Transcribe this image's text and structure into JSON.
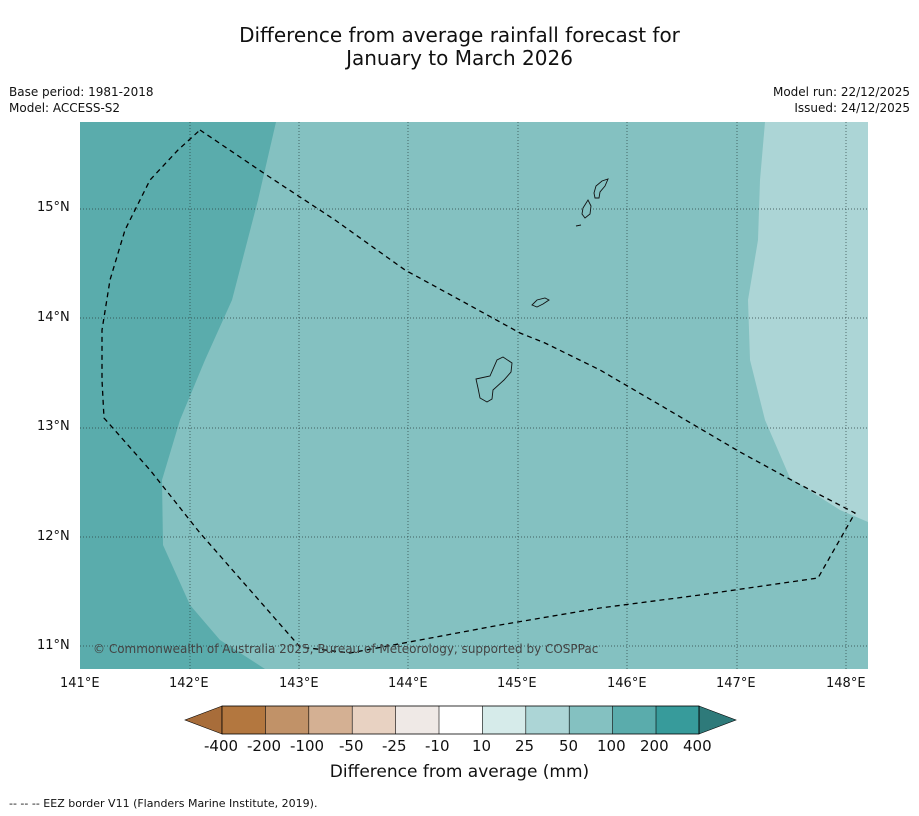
{
  "title_line1": "Difference from average rainfall forecast for",
  "title_line2": "January to March 2026",
  "meta_left": {
    "base_period": "Base period: 1981-2018",
    "model": "Model: ACCESS-S2"
  },
  "meta_right": {
    "model_run": "Model run: 22/12/2025",
    "issued": "Issued: 24/12/2025"
  },
  "latitudes": [
    "15°N",
    "14°N",
    "13°N",
    "12°N",
    "11°N"
  ],
  "longitudes": [
    "141°E",
    "142°E",
    "143°E",
    "144°E",
    "145°E",
    "146°E",
    "147°E",
    "148°E"
  ],
  "copyright": "© Commonwealth of Australia 2025, Bureau of Meteorology, supported by COSPPac",
  "colorbar": {
    "ticks": [
      "-400",
      "-200",
      "-100",
      "-50",
      "-25",
      "-10",
      "10",
      "25",
      "50",
      "100",
      "200",
      "400"
    ],
    "colors": [
      "#a86d3a",
      "#b3773f",
      "#c19268",
      "#d4b093",
      "#e8d2c2",
      "#efe9e6",
      "#ffffff",
      "#d6ebea",
      "#acd5d6",
      "#84c1c1",
      "#5aacac",
      "#379b9b",
      "#2e7a7a"
    ],
    "title": "Difference from average (mm)"
  },
  "legend_footnote": "--  --  -- EEZ border V11 (Flanders Marine Institute, 2019).",
  "map_colors": {
    "band_200": "#5aacac",
    "band_100": "#84c1c1",
    "band_50": "#acd5d6"
  }
}
